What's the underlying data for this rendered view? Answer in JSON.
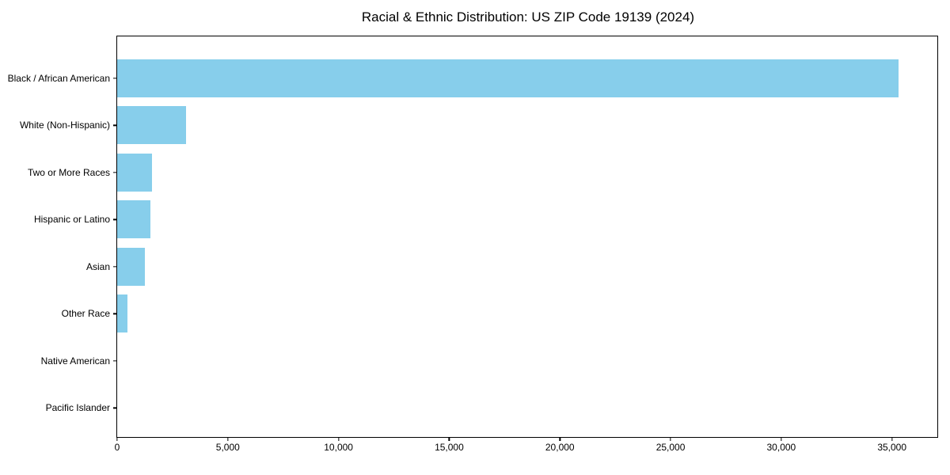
{
  "title": "Racial & Ethnic Distribution: US ZIP Code 19139 (2024)",
  "colors": {
    "background": "#ffffff",
    "bar": "#87CEEB",
    "spine": "#000000",
    "text": "#000000"
  },
  "chart_data": {
    "type": "bar",
    "orientation": "horizontal",
    "title": "Racial & Ethnic Distribution: US ZIP Code 19139 (2024)",
    "xlabel": "",
    "ylabel": "",
    "categories": [
      "Black / African American",
      "White (Non-Hispanic)",
      "Two or More Races",
      "Hispanic or Latino",
      "Asian",
      "Other Race",
      "Native American",
      "Pacific Islander"
    ],
    "values": [
      35300,
      3100,
      1570,
      1500,
      1250,
      460,
      0,
      0
    ],
    "xlim": [
      0,
      37050
    ],
    "x_ticks": [
      0,
      5000,
      10000,
      15000,
      20000,
      25000,
      30000,
      35000
    ],
    "x_tick_labels": [
      "0",
      "5,000",
      "10,000",
      "15,000",
      "20,000",
      "25,000",
      "30,000",
      "35,000"
    ],
    "bar_color": "#87CEEB",
    "grid": false,
    "legend": null
  }
}
